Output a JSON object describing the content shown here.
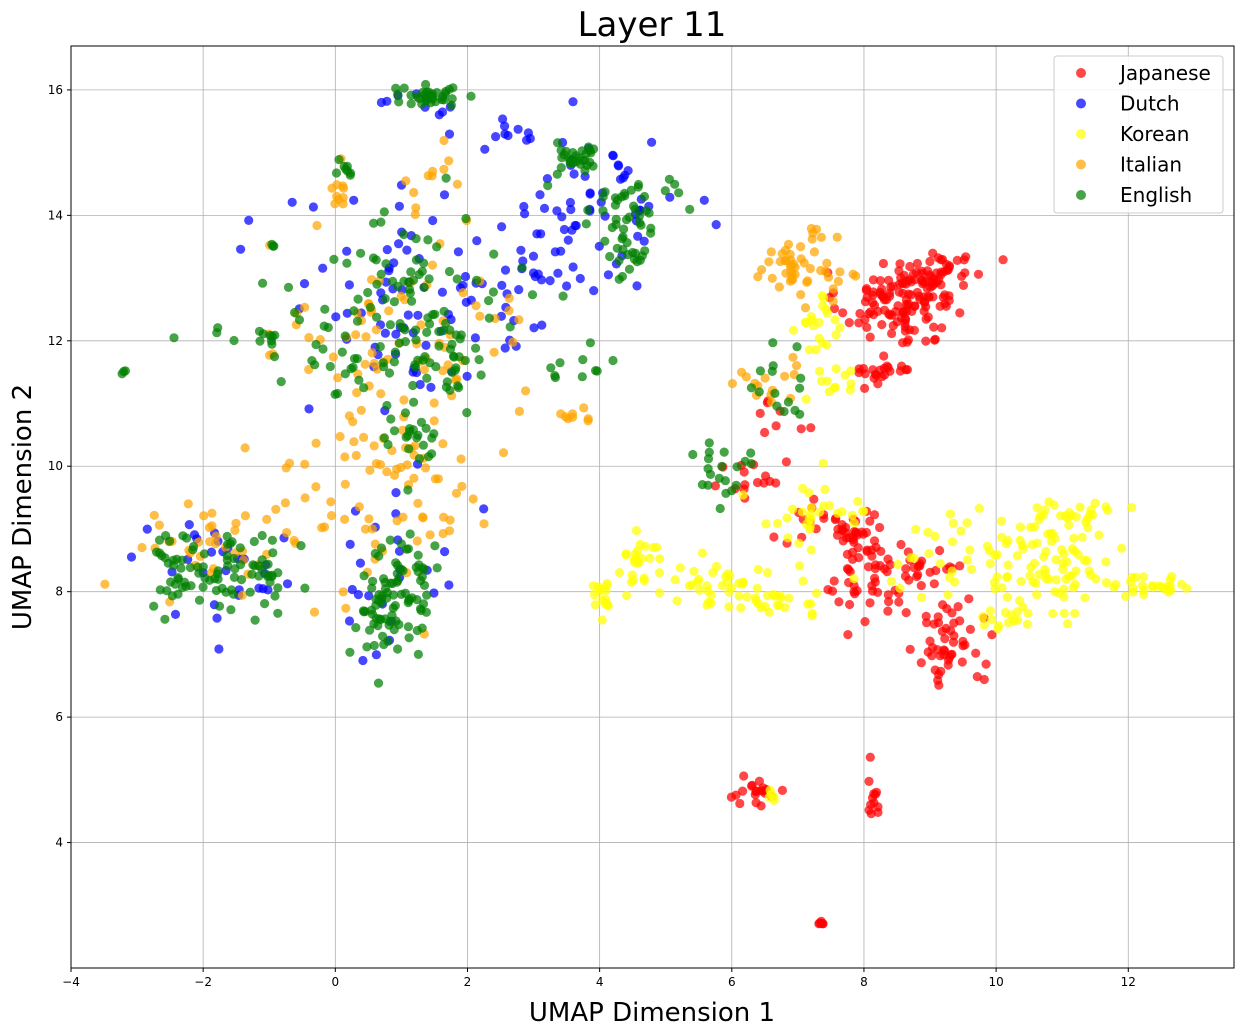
{
  "chart_data": {
    "type": "scatter",
    "title": "Layer 11",
    "xlabel": "UMAP Dimension 1",
    "ylabel": "UMAP Dimension 2",
    "xlim": [
      -4,
      13.6
    ],
    "ylim": [
      2.0,
      16.7
    ],
    "xticks": [
      -4,
      -2,
      0,
      2,
      4,
      6,
      8,
      10,
      12
    ],
    "yticks": [
      4,
      6,
      8,
      10,
      12,
      14,
      16
    ],
    "grid": true,
    "legend_position": "top-right",
    "series": [
      {
        "name": "Japanese",
        "color": "#ff0000",
        "clusters": [
          {
            "c": [
              8.3,
              12.6
            ],
            "s": [
              0.35,
              0.25
            ],
            "n": 70
          },
          {
            "c": [
              8.9,
              12.9
            ],
            "s": [
              0.3,
              0.25
            ],
            "n": 55
          },
          {
            "c": [
              9.3,
              13.2
            ],
            "s": [
              0.25,
              0.12
            ],
            "n": 20
          },
          {
            "c": [
              8.3,
              11.5
            ],
            "s": [
              0.25,
              0.1
            ],
            "n": 22
          },
          {
            "c": [
              8.8,
              12.1
            ],
            "s": [
              0.25,
              0.1
            ],
            "n": 12
          },
          {
            "c": [
              7.9,
              8.9
            ],
            "s": [
              0.2,
              0.25
            ],
            "n": 35
          },
          {
            "c": [
              8.2,
              8.0
            ],
            "s": [
              0.3,
              0.3
            ],
            "n": 35
          },
          {
            "c": [
              9.3,
              7.2
            ],
            "s": [
              0.25,
              0.35
            ],
            "n": 50
          },
          {
            "c": [
              8.8,
              8.4
            ],
            "s": [
              0.4,
              0.3
            ],
            "n": 25
          },
          {
            "c": [
              6.4,
              9.8
            ],
            "s": [
              0.35,
              0.2
            ],
            "n": 15
          },
          {
            "c": [
              7.2,
              9.1
            ],
            "s": [
              0.35,
              0.2
            ],
            "n": 14
          },
          {
            "c": [
              6.3,
              4.8
            ],
            "s": [
              0.25,
              0.1
            ],
            "n": 20
          },
          {
            "c": [
              8.15,
              4.8
            ],
            "s": [
              0.05,
              0.2
            ],
            "n": 12
          },
          {
            "c": [
              7.35,
              2.72
            ],
            "s": [
              0.03,
              0.02
            ],
            "n": 6
          },
          {
            "c": [
              6.9,
              10.9
            ],
            "s": [
              0.3,
              0.3
            ],
            "n": 8
          }
        ]
      },
      {
        "name": "Dutch",
        "color": "#0000ff",
        "clusters": [
          {
            "c": [
              1.0,
              12.5
            ],
            "s": [
              0.9,
              0.9
            ],
            "n": 60
          },
          {
            "c": [
              2.5,
              13.0
            ],
            "s": [
              0.6,
              0.6
            ],
            "n": 30
          },
          {
            "c": [
              4.0,
              14.3
            ],
            "s": [
              0.6,
              0.5
            ],
            "n": 45
          },
          {
            "c": [
              2.6,
              15.3
            ],
            "s": [
              0.3,
              0.15
            ],
            "n": 10
          },
          {
            "c": [
              -1.6,
              8.4
            ],
            "s": [
              0.8,
              0.4
            ],
            "n": 30
          },
          {
            "c": [
              0.8,
              8.5
            ],
            "s": [
              0.5,
              0.8
            ],
            "n": 25
          },
          {
            "c": [
              3.5,
              13.5
            ],
            "s": [
              0.5,
              0.4
            ],
            "n": 20
          },
          {
            "c": [
              1.1,
              15.8
            ],
            "s": [
              0.3,
              0.1
            ],
            "n": 8
          }
        ]
      },
      {
        "name": "Korean",
        "color": "#ffff00",
        "clusters": [
          {
            "c": [
              10.8,
              8.4
            ],
            "s": [
              0.5,
              0.4
            ],
            "n": 90
          },
          {
            "c": [
              11.2,
              9.3
            ],
            "s": [
              0.3,
              0.15
            ],
            "n": 20
          },
          {
            "c": [
              12.4,
              8.1
            ],
            "s": [
              0.3,
              0.08
            ],
            "n": 25
          },
          {
            "c": [
              6.5,
              8.0
            ],
            "s": [
              0.6,
              0.2
            ],
            "n": 40
          },
          {
            "c": [
              5.6,
              8.1
            ],
            "s": [
              0.3,
              0.2
            ],
            "n": 20
          },
          {
            "c": [
              4.6,
              8.5
            ],
            "s": [
              0.2,
              0.2
            ],
            "n": 25
          },
          {
            "c": [
              4.05,
              7.9
            ],
            "s": [
              0.1,
              0.15
            ],
            "n": 15
          },
          {
            "c": [
              7.2,
              9.2
            ],
            "s": [
              0.5,
              0.3
            ],
            "n": 30
          },
          {
            "c": [
              9.3,
              8.7
            ],
            "s": [
              0.4,
              0.4
            ],
            "n": 25
          },
          {
            "c": [
              10.3,
              7.5
            ],
            "s": [
              0.3,
              0.08
            ],
            "n": 12
          },
          {
            "c": [
              7.3,
              12.2
            ],
            "s": [
              0.2,
              0.3
            ],
            "n": 20
          },
          {
            "c": [
              7.5,
              11.3
            ],
            "s": [
              0.2,
              0.2
            ],
            "n": 12
          },
          {
            "c": [
              6.6,
              4.75
            ],
            "s": [
              0.05,
              0.05
            ],
            "n": 5
          }
        ]
      },
      {
        "name": "Italian",
        "color": "#ffa500",
        "clusters": [
          {
            "c": [
              7.0,
              13.2
            ],
            "s": [
              0.3,
              0.25
            ],
            "n": 50
          },
          {
            "c": [
              1.0,
              9.5
            ],
            "s": [
              0.6,
              0.8
            ],
            "n": 60
          },
          {
            "c": [
              1.0,
              12.0
            ],
            "s": [
              0.9,
              0.9
            ],
            "n": 80
          },
          {
            "c": [
              -2.0,
              8.8
            ],
            "s": [
              0.6,
              0.4
            ],
            "n": 30
          },
          {
            "c": [
              -0.8,
              9.4
            ],
            "s": [
              0.5,
              0.4
            ],
            "n": 20
          },
          {
            "c": [
              0.1,
              14.5
            ],
            "s": [
              0.1,
              0.2
            ],
            "n": 10
          },
          {
            "c": [
              3.8,
              10.8
            ],
            "s": [
              0.2,
              0.05
            ],
            "n": 8
          },
          {
            "c": [
              6.4,
              11.3
            ],
            "s": [
              0.4,
              0.3
            ],
            "n": 15
          },
          {
            "c": [
              1.5,
              14.6
            ],
            "s": [
              0.3,
              0.3
            ],
            "n": 10
          }
        ]
      },
      {
        "name": "English",
        "color": "#008000",
        "clusters": [
          {
            "c": [
              1.4,
              15.9
            ],
            "s": [
              0.25,
              0.08
            ],
            "n": 35
          },
          {
            "c": [
              3.7,
              14.9
            ],
            "s": [
              0.2,
              0.12
            ],
            "n": 30
          },
          {
            "c": [
              0.8,
              7.6
            ],
            "s": [
              0.3,
              0.35
            ],
            "n": 60
          },
          {
            "c": [
              1.1,
              8.3
            ],
            "s": [
              0.25,
              0.3
            ],
            "n": 30
          },
          {
            "c": [
              -2.4,
              8.4
            ],
            "s": [
              0.25,
              0.3
            ],
            "n": 35
          },
          {
            "c": [
              -1.6,
              8.4
            ],
            "s": [
              0.25,
              0.3
            ],
            "n": 30
          },
          {
            "c": [
              -1.0,
              8.3
            ],
            "s": [
              0.2,
              0.3
            ],
            "n": 25
          },
          {
            "c": [
              -1.2,
              12.1
            ],
            "s": [
              0.3,
              0.06
            ],
            "n": 12
          },
          {
            "c": [
              1.0,
              12.4
            ],
            "s": [
              0.8,
              0.8
            ],
            "n": 90
          },
          {
            "c": [
              1.7,
              11.8
            ],
            "s": [
              0.3,
              0.3
            ],
            "n": 30
          },
          {
            "c": [
              4.3,
              14.0
            ],
            "s": [
              0.4,
              0.3
            ],
            "n": 35
          },
          {
            "c": [
              4.5,
              13.3
            ],
            "s": [
              0.2,
              0.2
            ],
            "n": 15
          },
          {
            "c": [
              3.5,
              11.6
            ],
            "s": [
              0.3,
              0.2
            ],
            "n": 10
          },
          {
            "c": [
              5.8,
              10.0
            ],
            "s": [
              0.3,
              0.3
            ],
            "n": 20
          },
          {
            "c": [
              6.8,
              11.2
            ],
            "s": [
              0.3,
              0.3
            ],
            "n": 15
          },
          {
            "c": [
              0.1,
              14.7
            ],
            "s": [
              0.1,
              0.1
            ],
            "n": 8
          },
          {
            "c": [
              -3.2,
              11.5
            ],
            "s": [
              0.02,
              0.02
            ],
            "n": 3
          },
          {
            "c": [
              -0.95,
              13.52
            ],
            "s": [
              0.02,
              0.02
            ],
            "n": 3
          },
          {
            "c": [
              1.2,
              10.5
            ],
            "s": [
              0.3,
              0.4
            ],
            "n": 20
          },
          {
            "c": [
              0.2,
              11.5
            ],
            "s": [
              0.3,
              0.4
            ],
            "n": 15
          },
          {
            "c": [
              5.0,
              14.4
            ],
            "s": [
              0.1,
              0.1
            ],
            "n": 5
          }
        ]
      }
    ]
  }
}
